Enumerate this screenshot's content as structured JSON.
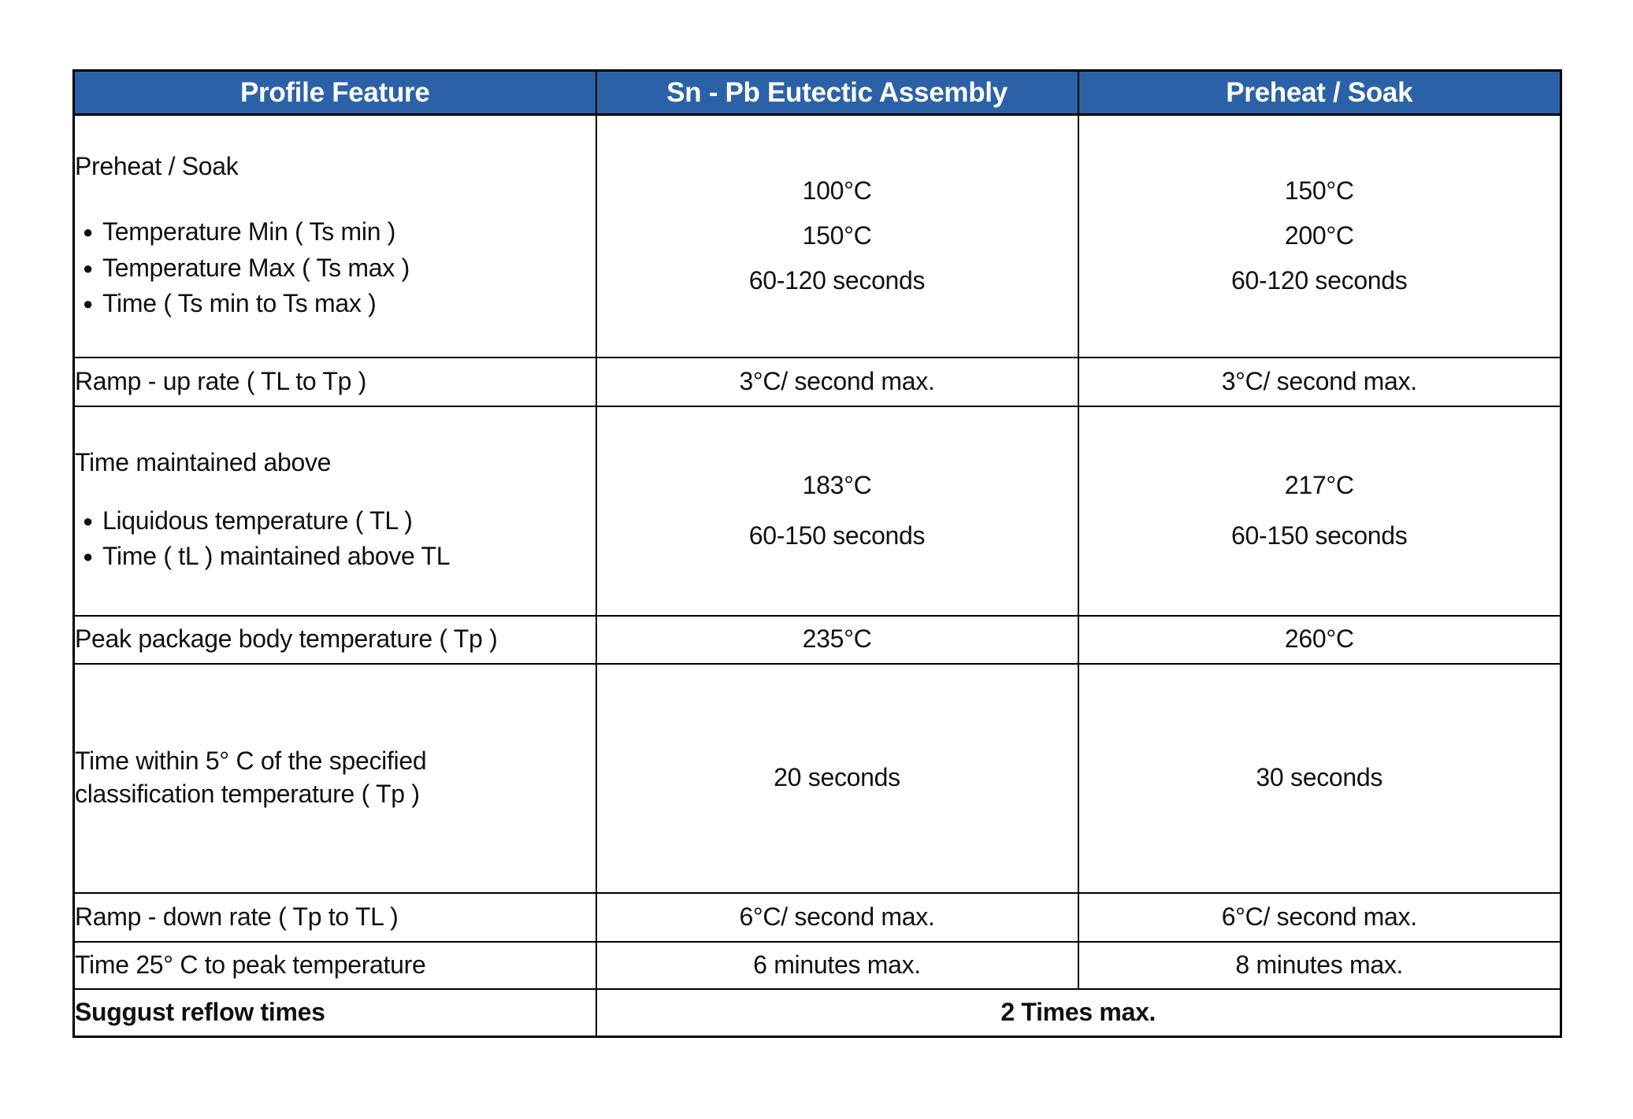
{
  "glyphs": {
    "bullet": "●"
  },
  "colors": {
    "header_bg": "#2b62a7",
    "header_text": "#ffffff",
    "border": "#000000",
    "body_text": "#111111"
  },
  "table": {
    "header": {
      "col1": "Profile Feature",
      "col2": "Sn - Pb Eutectic Assembly",
      "col3": "Preheat / Soak"
    },
    "rows": [
      {
        "title": "Preheat / Soak",
        "bullets": [
          "Temperature Min ( Ts min )",
          "Temperature Max ( Ts max )",
          "Time ( Ts min to Ts max )"
        ],
        "col2": [
          "100°C",
          "150°C",
          "60-120 seconds"
        ],
        "col3": [
          "150°C",
          "200°C",
          "60-120 seconds"
        ]
      },
      {
        "title": "Ramp - up rate ( TL to Tp )",
        "col2": [
          "3°C/ second max."
        ],
        "col3": [
          "3°C/ second max."
        ]
      },
      {
        "title": "Time maintained above",
        "bullets": [
          "Liquidous temperature ( TL )",
          "Time ( tL ) maintained above TL"
        ],
        "col2": [
          "183°C",
          "60-150 seconds"
        ],
        "col3": [
          "217°C",
          "60-150 seconds"
        ]
      },
      {
        "title": "Peak package body temperature ( Tp )",
        "col2": [
          "235°C"
        ],
        "col3": [
          "260°C"
        ]
      },
      {
        "title": "Time within 5° C of the specified classification temperature ( Tp )",
        "col2": [
          "20 seconds"
        ],
        "col3": [
          "30 seconds"
        ]
      },
      {
        "title": "Ramp - down rate ( Tp to TL )",
        "col2": [
          "6°C/ second max."
        ],
        "col3": [
          "6°C/ second max."
        ]
      },
      {
        "title": "Time 25° C to peak temperature",
        "col2": [
          "6 minutes max."
        ],
        "col3": [
          "8 minutes max."
        ]
      },
      {
        "title": "Suggust reflow times",
        "merged": "2 Times max."
      }
    ]
  }
}
